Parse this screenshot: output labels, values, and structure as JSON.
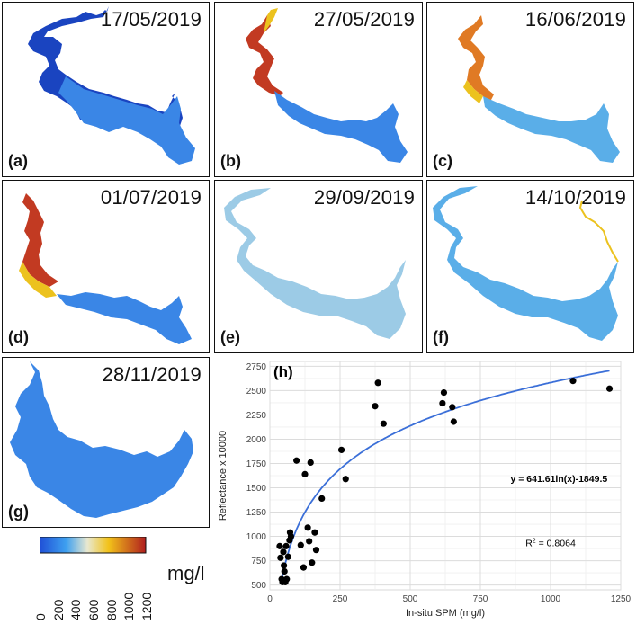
{
  "panels": [
    {
      "id": "a",
      "label": "(a)",
      "date": "17/05/2019"
    },
    {
      "id": "b",
      "label": "(b)",
      "date": "27/05/2019"
    },
    {
      "id": "c",
      "label": "(c)",
      "date": "16/06/2019"
    },
    {
      "id": "d",
      "label": "(d)",
      "date": "01/07/2019"
    },
    {
      "id": "e",
      "label": "(e)",
      "date": "29/09/2019"
    },
    {
      "id": "f",
      "label": "(f)",
      "date": "14/10/2019"
    },
    {
      "id": "g",
      "label": "(g)",
      "date": "28/11/2019"
    }
  ],
  "colorbar": {
    "unit": "mg/l",
    "ticks": [
      "0",
      "200",
      "400",
      "600",
      "800",
      "1000",
      "1200"
    ],
    "colors": {
      "low": "#1f4fd6",
      "mid_low": "#3ea0f0",
      "mid": "#e8e8d0",
      "mid_high": "#f2c21a",
      "high": "#b01e1e"
    }
  },
  "map_colors": {
    "dark_blue": "#1a44c0",
    "blue": "#3a86e6",
    "light_blue": "#5aaee8",
    "pale_blue": "#9ccbe6",
    "yellow": "#ecc21e",
    "orange": "#e07a24",
    "red": "#c23a22"
  },
  "chart_data": {
    "type": "scatter",
    "panel_label": "(h)",
    "xlabel": "In-situ SPM (mg/l)",
    "ylabel": "Reflectance x 10000",
    "xlim": [
      0,
      1250
    ],
    "ylim": [
      450,
      2800
    ],
    "xticks": [
      0,
      250,
      500,
      750,
      1000,
      1250
    ],
    "yticks": [
      500,
      750,
      1000,
      1250,
      1500,
      1750,
      2000,
      2250,
      2500,
      2750
    ],
    "points": [
      [
        35,
        900
      ],
      [
        38,
        780
      ],
      [
        42,
        560
      ],
      [
        45,
        530
      ],
      [
        48,
        840
      ],
      [
        50,
        700
      ],
      [
        52,
        640
      ],
      [
        55,
        530
      ],
      [
        58,
        900
      ],
      [
        60,
        560
      ],
      [
        65,
        790
      ],
      [
        70,
        960
      ],
      [
        72,
        1040
      ],
      [
        75,
        1000
      ],
      [
        95,
        1780
      ],
      [
        110,
        910
      ],
      [
        120,
        680
      ],
      [
        125,
        1640
      ],
      [
        135,
        1090
      ],
      [
        140,
        950
      ],
      [
        145,
        1760
      ],
      [
        150,
        730
      ],
      [
        160,
        1040
      ],
      [
        165,
        860
      ],
      [
        185,
        1390
      ],
      [
        255,
        1890
      ],
      [
        270,
        1590
      ],
      [
        375,
        2340
      ],
      [
        385,
        2580
      ],
      [
        405,
        2160
      ],
      [
        615,
        2370
      ],
      [
        620,
        2480
      ],
      [
        650,
        2330
      ],
      [
        655,
        2180
      ],
      [
        1080,
        2600
      ],
      [
        1210,
        2520
      ]
    ],
    "fit": {
      "a": 641.61,
      "b": -1849.5,
      "color": "#3b6fd8"
    },
    "equation": "y = 641.61ln(x)-1849.5",
    "r2_prefix": "R",
    "r2_sup": "2",
    "r2_value": " = 0.8064"
  }
}
